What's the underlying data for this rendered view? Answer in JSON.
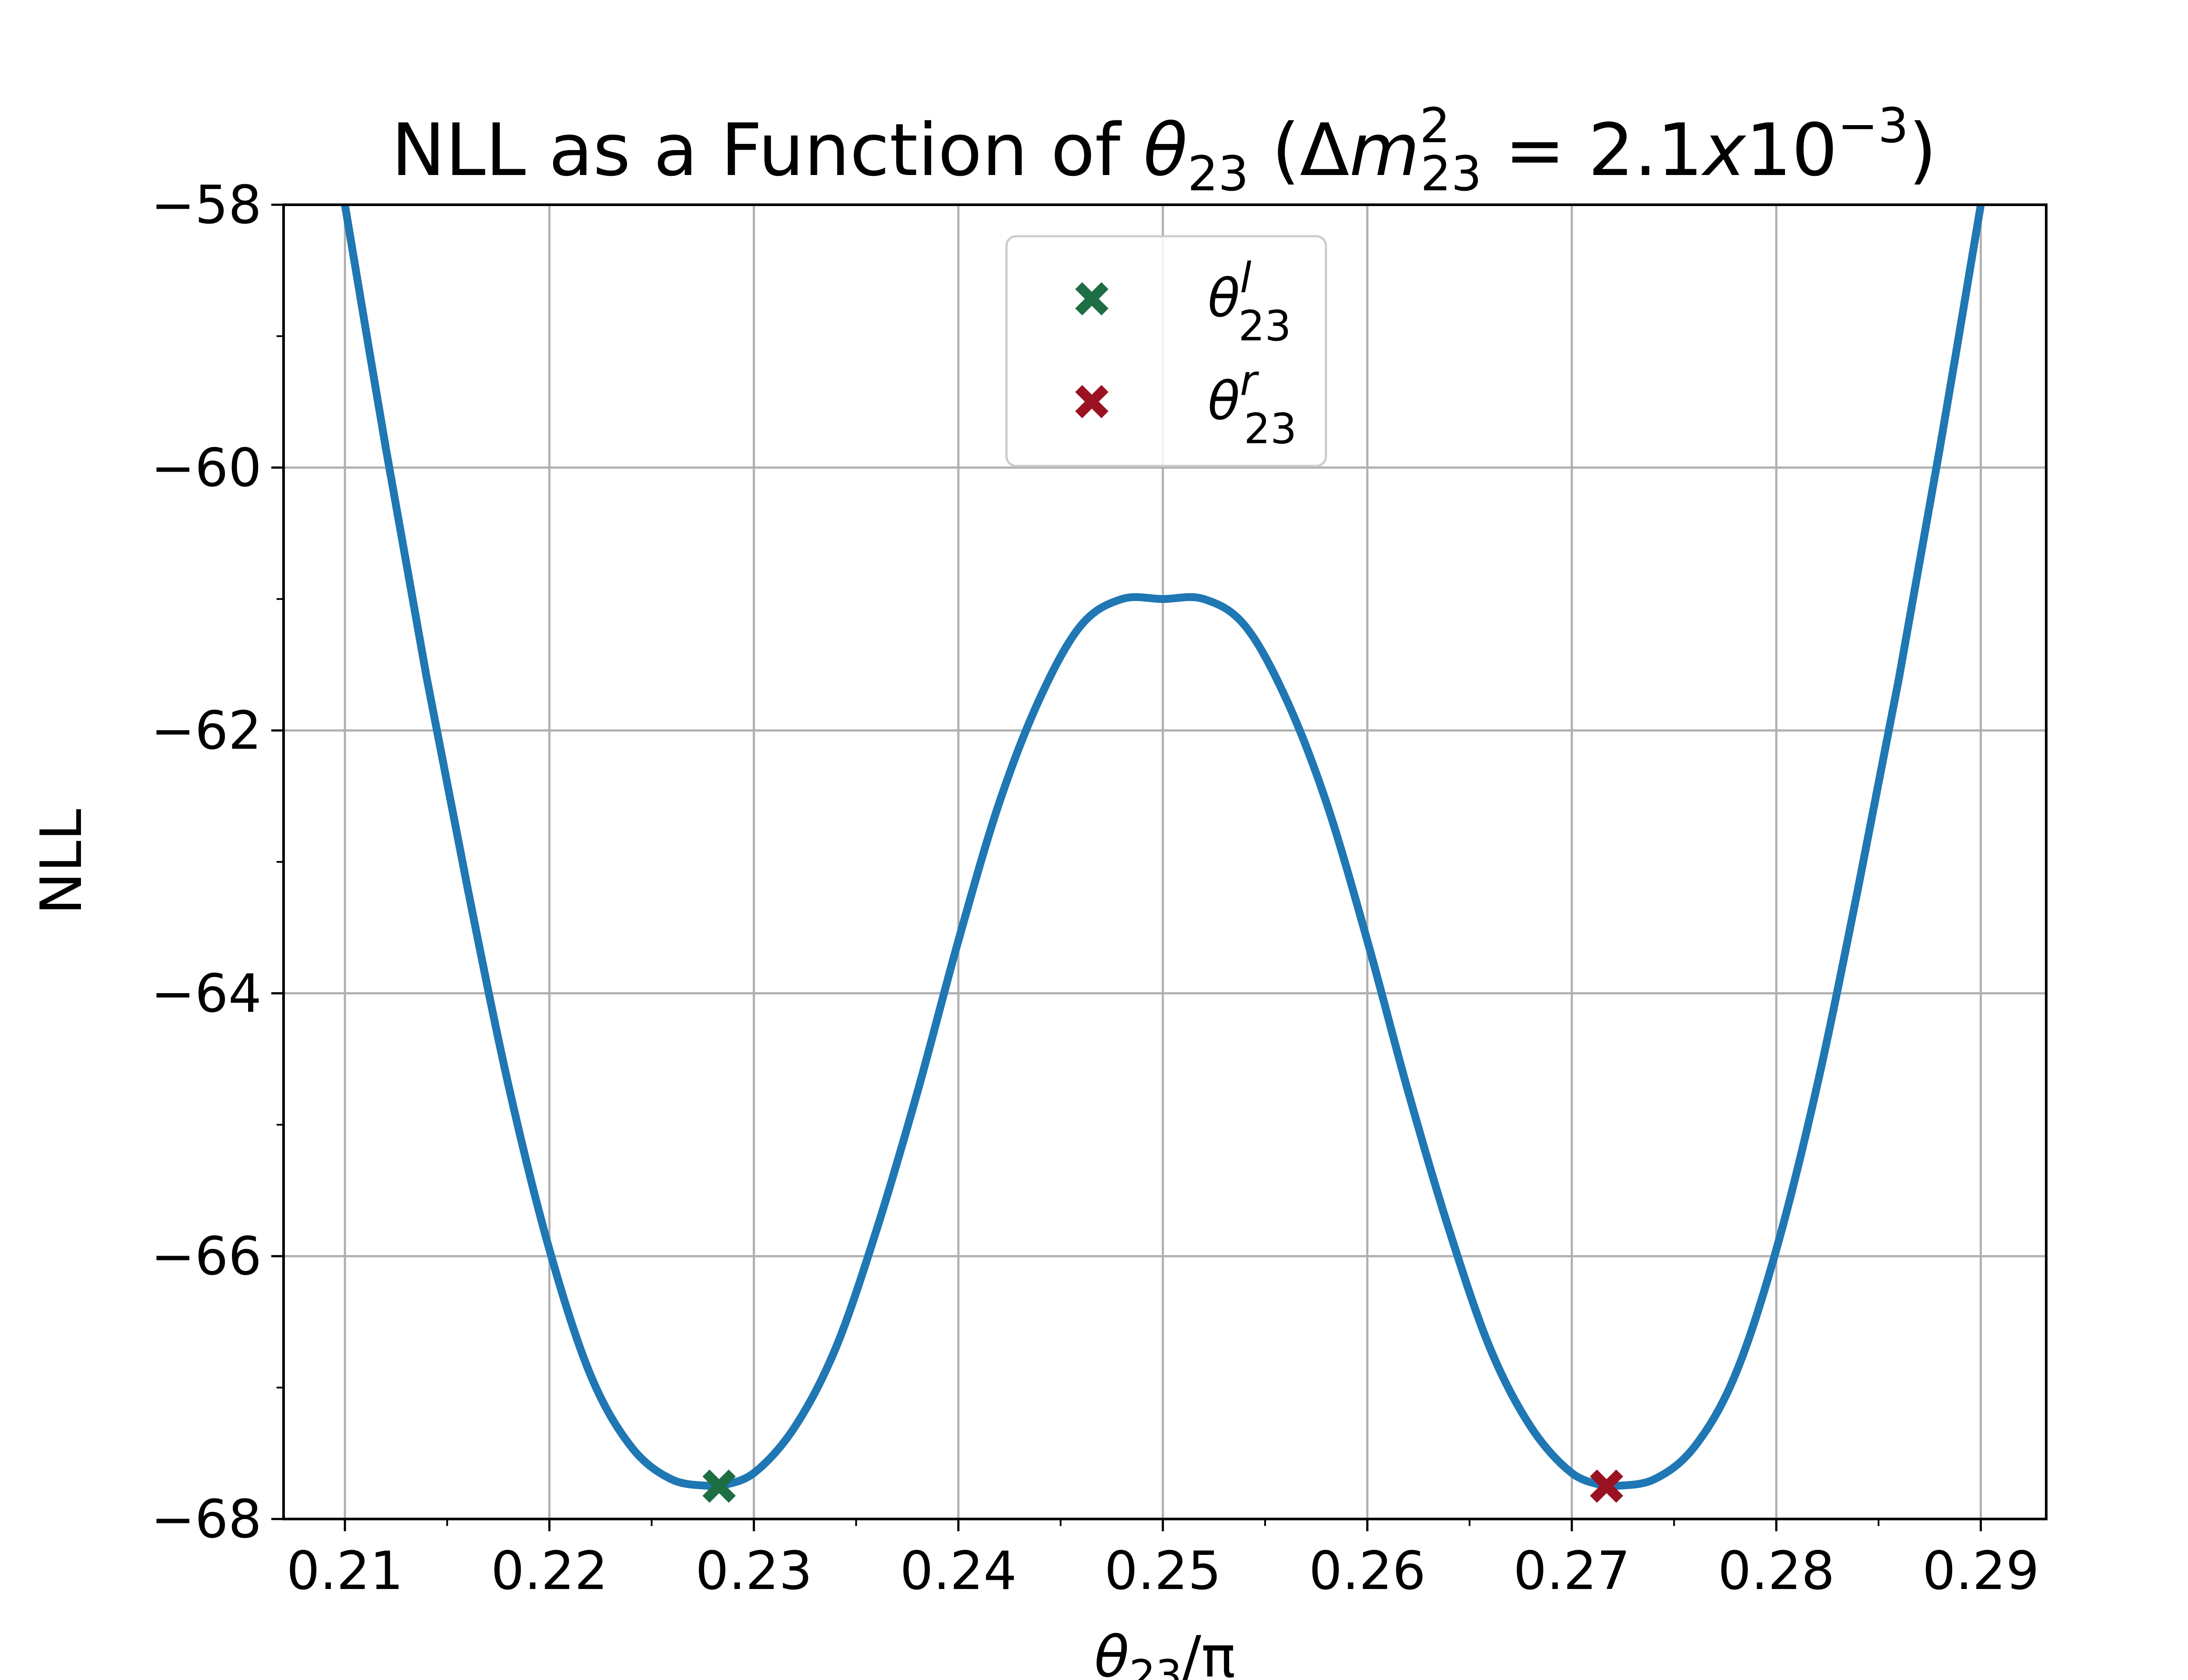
{
  "chart_data": {
    "type": "line",
    "title": {
      "prefix": "NLL as a Function of ",
      "theta": "θ",
      "theta_sub": "23",
      "mid": " (Δ",
      "m": "m",
      "m_sup": "2",
      "m_sub": "23",
      "eq": " = 2.1",
      "x": "x",
      "ten": "10",
      "exp": "−3",
      "close": ")"
    },
    "xlabel": {
      "theta": "θ",
      "sub": "23",
      "rest": "/π"
    },
    "ylabel": "NLL",
    "xlim": [
      0.207,
      0.2932
    ],
    "ylim": [
      -68,
      -58
    ],
    "xticks": [
      0.21,
      0.22,
      0.23,
      0.24,
      0.25,
      0.26,
      0.27,
      0.28,
      0.29
    ],
    "xtick_labels": [
      "0.21",
      "0.22",
      "0.23",
      "0.24",
      "0.25",
      "0.26",
      "0.27",
      "0.28",
      "0.29"
    ],
    "yticks": [
      -68,
      -66,
      -64,
      -62,
      -60,
      -58
    ],
    "ytick_labels": [
      "−68",
      "−66",
      "−64",
      "−62",
      "−60",
      "−58"
    ],
    "grid": true,
    "legend_position": "top-center",
    "series": [
      {
        "x": [
          0.21,
          0.212,
          0.214,
          0.216,
          0.218,
          0.22,
          0.222,
          0.224,
          0.226,
          0.228,
          0.2283,
          0.23,
          0.232,
          0.234,
          0.236,
          0.238,
          0.24,
          0.242,
          0.244,
          0.246,
          0.248,
          0.25,
          0.252,
          0.254,
          0.256,
          0.258,
          0.26,
          0.262,
          0.264,
          0.266,
          0.268,
          0.27,
          0.2717,
          0.272,
          0.274,
          0.276,
          0.278,
          0.28,
          0.282,
          0.284,
          0.286,
          0.288,
          0.29
        ],
        "y": [
          -58.0,
          -59.85,
          -61.6,
          -63.2,
          -64.7,
          -65.95,
          -66.9,
          -67.45,
          -67.7,
          -67.75,
          -67.75,
          -67.65,
          -67.3,
          -66.7,
          -65.8,
          -64.75,
          -63.6,
          -62.55,
          -61.75,
          -61.2,
          -61.0,
          -61.0,
          -61.0,
          -61.2,
          -61.75,
          -62.55,
          -63.6,
          -64.75,
          -65.8,
          -66.7,
          -67.3,
          -67.65,
          -67.75,
          -67.75,
          -67.7,
          -67.45,
          -66.9,
          -65.95,
          -64.7,
          -63.2,
          -61.6,
          -59.85,
          -58.0
        ],
        "color": "#1f77b4"
      }
    ],
    "markers": [
      {
        "name": "θ^l_23",
        "x": 0.2283,
        "y": -67.75,
        "color": "#1e6e44",
        "symbol": "X"
      },
      {
        "name": "θ^r_23",
        "x": 0.2717,
        "y": -67.75,
        "color": "#9a1222",
        "symbol": "X"
      }
    ],
    "legend": [
      {
        "theta": "θ",
        "sup": "l",
        "sub": "23",
        "color": "#1e6e44"
      },
      {
        "theta": "θ",
        "sup": "r",
        "sub": "23",
        "color": "#9a1222"
      }
    ]
  }
}
